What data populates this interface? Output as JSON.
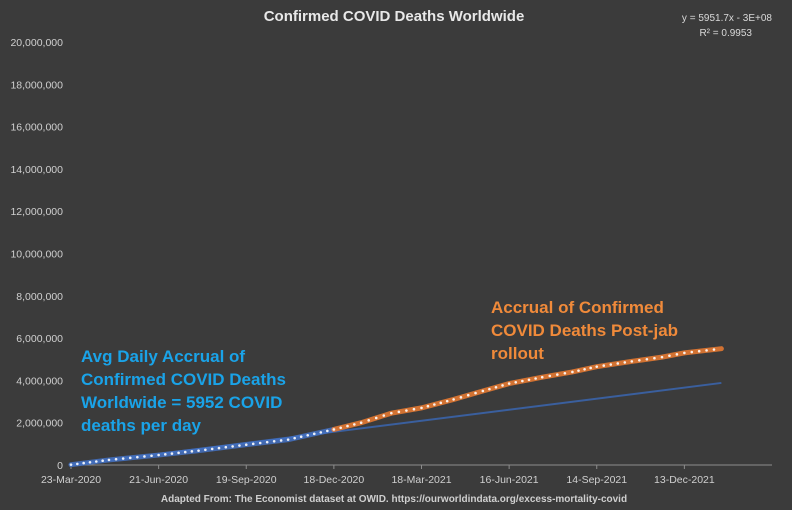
{
  "chart_data": {
    "type": "scatter",
    "title": "Confirmed COVID Deaths Worldwide",
    "xlabel": "",
    "ylabel": "",
    "x_ticks": [
      "23-Mar-2020",
      "21-Jun-2020",
      "19-Sep-2020",
      "18-Dec-2020",
      "18-Mar-2021",
      "16-Jun-2021",
      "14-Sep-2021",
      "13-Dec-2021"
    ],
    "y_ticks": [
      "0",
      "2,000,000",
      "4,000,000",
      "6,000,000",
      "8,000,000",
      "10,000,000",
      "12,000,000",
      "14,000,000",
      "16,000,000",
      "18,000,000",
      "20,000,000"
    ],
    "xlim": [
      "2020-03-23",
      "2022-03-13"
    ],
    "ylim": [
      0,
      20000000
    ],
    "grid": false,
    "series": [
      {
        "color": "#4472c4",
        "points": [
          [
            "2020-03-23",
            15000
          ],
          [
            "2020-05-01",
            240000
          ],
          [
            "2020-06-21",
            470000
          ],
          [
            "2020-08-01",
            680000
          ],
          [
            "2020-09-19",
            960000
          ],
          [
            "2020-11-01",
            1200000
          ],
          [
            "2020-12-18",
            1680000
          ]
        ]
      },
      {
        "color": "#ed7d31",
        "points": [
          [
            "2020-12-18",
            1680000
          ],
          [
            "2021-01-15",
            2000000
          ],
          [
            "2021-02-15",
            2450000
          ],
          [
            "2021-03-18",
            2700000
          ],
          [
            "2021-04-20",
            3100000
          ],
          [
            "2021-05-20",
            3500000
          ],
          [
            "2021-06-16",
            3850000
          ],
          [
            "2021-07-20",
            4150000
          ],
          [
            "2021-08-20",
            4400000
          ],
          [
            "2021-09-14",
            4650000
          ],
          [
            "2021-10-20",
            4900000
          ],
          [
            "2021-11-20",
            5100000
          ],
          [
            "2021-12-13",
            5300000
          ],
          [
            "2022-01-20",
            5500000
          ]
        ]
      }
    ],
    "trendline": {
      "color": "#3a5f9e",
      "points": [
        [
          "2020-03-23",
          0
        ],
        [
          "2022-01-20",
          3880000
        ]
      ],
      "equation": "y = 5951.7x - 3E+08",
      "r_squared": "R² = 0.9953"
    },
    "annotations": {
      "blue": [
        "Avg Daily Accrual of",
        "Confirmed COVID Deaths",
        "Worldwide = 5952 COVID",
        "deaths per day"
      ],
      "orange": [
        "Accrual of Confirmed",
        "COVID Deaths Post-jab",
        "rollout"
      ]
    },
    "source": "Adapted From: The Economist dataset at OWID. https://ourworldindata.org/excess-mortality-covid"
  }
}
